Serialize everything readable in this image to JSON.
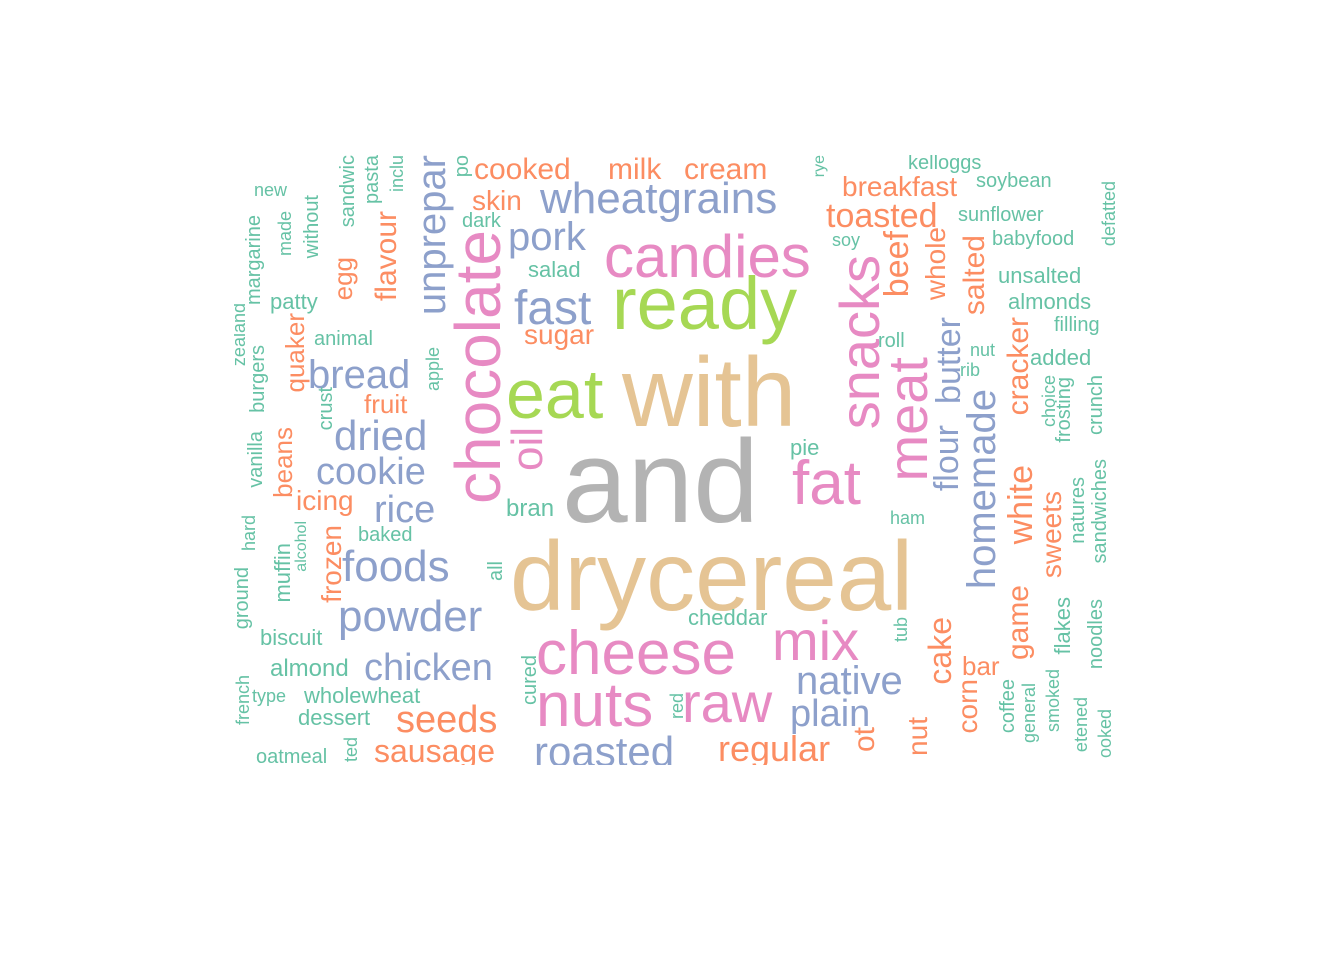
{
  "palette": {
    "teal": "#66c2a5",
    "orange": "#fc8d62",
    "blue": "#8da0cb",
    "pink": "#e78ac3",
    "green": "#a6d854",
    "tan": "#e5c494",
    "gray": "#b3b3b3"
  },
  "words": [
    {
      "text": "and",
      "color": "gray"
    },
    {
      "text": "drycereal",
      "color": "tan"
    },
    {
      "text": "with",
      "color": "tan"
    },
    {
      "text": "eat",
      "color": "green"
    },
    {
      "text": "ready",
      "color": "green"
    },
    {
      "text": "chocolate",
      "color": "pink"
    },
    {
      "text": "candies",
      "color": "pink"
    },
    {
      "text": "cheese",
      "color": "pink"
    },
    {
      "text": "nuts",
      "color": "pink"
    },
    {
      "text": "raw",
      "color": "pink"
    },
    {
      "text": "mix",
      "color": "pink"
    },
    {
      "text": "fat",
      "color": "pink"
    },
    {
      "text": "snacks",
      "color": "pink"
    },
    {
      "text": "meat",
      "color": "pink"
    },
    {
      "text": "oil",
      "color": "pink"
    },
    {
      "text": "wheatgrains",
      "color": "blue"
    },
    {
      "text": "pork",
      "color": "blue"
    },
    {
      "text": "fast",
      "color": "blue"
    },
    {
      "text": "bread",
      "color": "blue"
    },
    {
      "text": "dried",
      "color": "blue"
    },
    {
      "text": "cookie",
      "color": "blue"
    },
    {
      "text": "rice",
      "color": "blue"
    },
    {
      "text": "foods",
      "color": "blue"
    },
    {
      "text": "powder",
      "color": "blue"
    },
    {
      "text": "chicken",
      "color": "blue"
    },
    {
      "text": "roasted",
      "color": "blue"
    },
    {
      "text": "native",
      "color": "blue"
    },
    {
      "text": "plain",
      "color": "blue"
    },
    {
      "text": "unprepar",
      "color": "blue"
    },
    {
      "text": "homemade",
      "color": "blue"
    },
    {
      "text": "butter",
      "color": "blue"
    },
    {
      "text": "flour",
      "color": "blue"
    },
    {
      "text": "cooked",
      "color": "orange"
    },
    {
      "text": "milk",
      "color": "orange"
    },
    {
      "text": "cream",
      "color": "orange"
    },
    {
      "text": "skin",
      "color": "orange"
    },
    {
      "text": "sugar",
      "color": "orange"
    },
    {
      "text": "breakfast",
      "color": "orange"
    },
    {
      "text": "toasted",
      "color": "orange"
    },
    {
      "text": "beef",
      "color": "orange"
    },
    {
      "text": "whole",
      "color": "orange"
    },
    {
      "text": "salted",
      "color": "orange"
    },
    {
      "text": "cracker",
      "color": "orange"
    },
    {
      "text": "white",
      "color": "orange"
    },
    {
      "text": "sweets",
      "color": "orange"
    },
    {
      "text": "game",
      "color": "orange"
    },
    {
      "text": "cake",
      "color": "orange"
    },
    {
      "text": "corn",
      "color": "orange"
    },
    {
      "text": "bar",
      "color": "orange"
    },
    {
      "text": "nut",
      "color": "orange"
    },
    {
      "text": "ot",
      "color": "orange"
    },
    {
      "text": "regular",
      "color": "orange"
    },
    {
      "text": "seeds",
      "color": "orange"
    },
    {
      "text": "sausage",
      "color": "orange"
    },
    {
      "text": "fruit",
      "color": "orange"
    },
    {
      "text": "icing",
      "color": "orange"
    },
    {
      "text": "frozen",
      "color": "orange"
    },
    {
      "text": "beans",
      "color": "orange"
    },
    {
      "text": "quaker",
      "color": "orange"
    },
    {
      "text": "flavour",
      "color": "orange"
    },
    {
      "text": "egg",
      "color": "orange"
    },
    {
      "text": "kelloggs",
      "color": "teal"
    },
    {
      "text": "soybean",
      "color": "teal"
    },
    {
      "text": "sunflower",
      "color": "teal"
    },
    {
      "text": "babyfood",
      "color": "teal"
    },
    {
      "text": "unsalted",
      "color": "teal"
    },
    {
      "text": "almonds",
      "color": "teal"
    },
    {
      "text": "filling",
      "color": "teal"
    },
    {
      "text": "added",
      "color": "teal"
    },
    {
      "text": "defatted",
      "color": "teal"
    },
    {
      "text": "soy",
      "color": "teal"
    },
    {
      "text": "roll",
      "color": "teal"
    },
    {
      "text": "nut",
      "color": "teal"
    },
    {
      "text": "rib",
      "color": "teal"
    },
    {
      "text": "choice",
      "color": "teal"
    },
    {
      "text": "frosting",
      "color": "teal"
    },
    {
      "text": "crunch",
      "color": "teal"
    },
    {
      "text": "natures",
      "color": "teal"
    },
    {
      "text": "sandwiches",
      "color": "teal"
    },
    {
      "text": "flakes",
      "color": "teal"
    },
    {
      "text": "noodles",
      "color": "teal"
    },
    {
      "text": "smoked",
      "color": "teal"
    },
    {
      "text": "general",
      "color": "teal"
    },
    {
      "text": "coffee",
      "color": "teal"
    },
    {
      "text": "etened",
      "color": "teal"
    },
    {
      "text": "ooked",
      "color": "teal"
    },
    {
      "text": "ham",
      "color": "teal"
    },
    {
      "text": "pie",
      "color": "teal"
    },
    {
      "text": "tub",
      "color": "teal"
    },
    {
      "text": "cheddar",
      "color": "teal"
    },
    {
      "text": "red",
      "color": "teal"
    },
    {
      "text": "cured",
      "color": "teal"
    },
    {
      "text": "bran",
      "color": "teal"
    },
    {
      "text": "salad",
      "color": "teal"
    },
    {
      "text": "dark",
      "color": "teal"
    },
    {
      "text": "baked",
      "color": "teal"
    },
    {
      "text": "all",
      "color": "teal"
    },
    {
      "text": "apple",
      "color": "teal"
    },
    {
      "text": "animal",
      "color": "teal"
    },
    {
      "text": "patty",
      "color": "teal"
    },
    {
      "text": "crust",
      "color": "teal"
    },
    {
      "text": "alcohol",
      "color": "teal"
    },
    {
      "text": "muffin",
      "color": "teal"
    },
    {
      "text": "biscuit",
      "color": "teal"
    },
    {
      "text": "almond",
      "color": "teal"
    },
    {
      "text": "wholewheat",
      "color": "teal"
    },
    {
      "text": "dessert",
      "color": "teal"
    },
    {
      "text": "type",
      "color": "teal"
    },
    {
      "text": "oatmeal",
      "color": "teal"
    },
    {
      "text": "ted",
      "color": "teal"
    },
    {
      "text": "new",
      "color": "teal"
    },
    {
      "text": "made",
      "color": "teal"
    },
    {
      "text": "without",
      "color": "teal"
    },
    {
      "text": "sandwic",
      "color": "teal"
    },
    {
      "text": "pasta",
      "color": "teal"
    },
    {
      "text": "inclu",
      "color": "teal"
    },
    {
      "text": "po",
      "color": "teal"
    },
    {
      "text": "rye",
      "color": "teal"
    },
    {
      "text": "margarine",
      "color": "teal"
    },
    {
      "text": "zealand",
      "color": "teal"
    },
    {
      "text": "burgers",
      "color": "teal"
    },
    {
      "text": "vanilla",
      "color": "teal"
    },
    {
      "text": "hard",
      "color": "teal"
    },
    {
      "text": "ground",
      "color": "teal"
    },
    {
      "text": "french",
      "color": "teal"
    }
  ]
}
